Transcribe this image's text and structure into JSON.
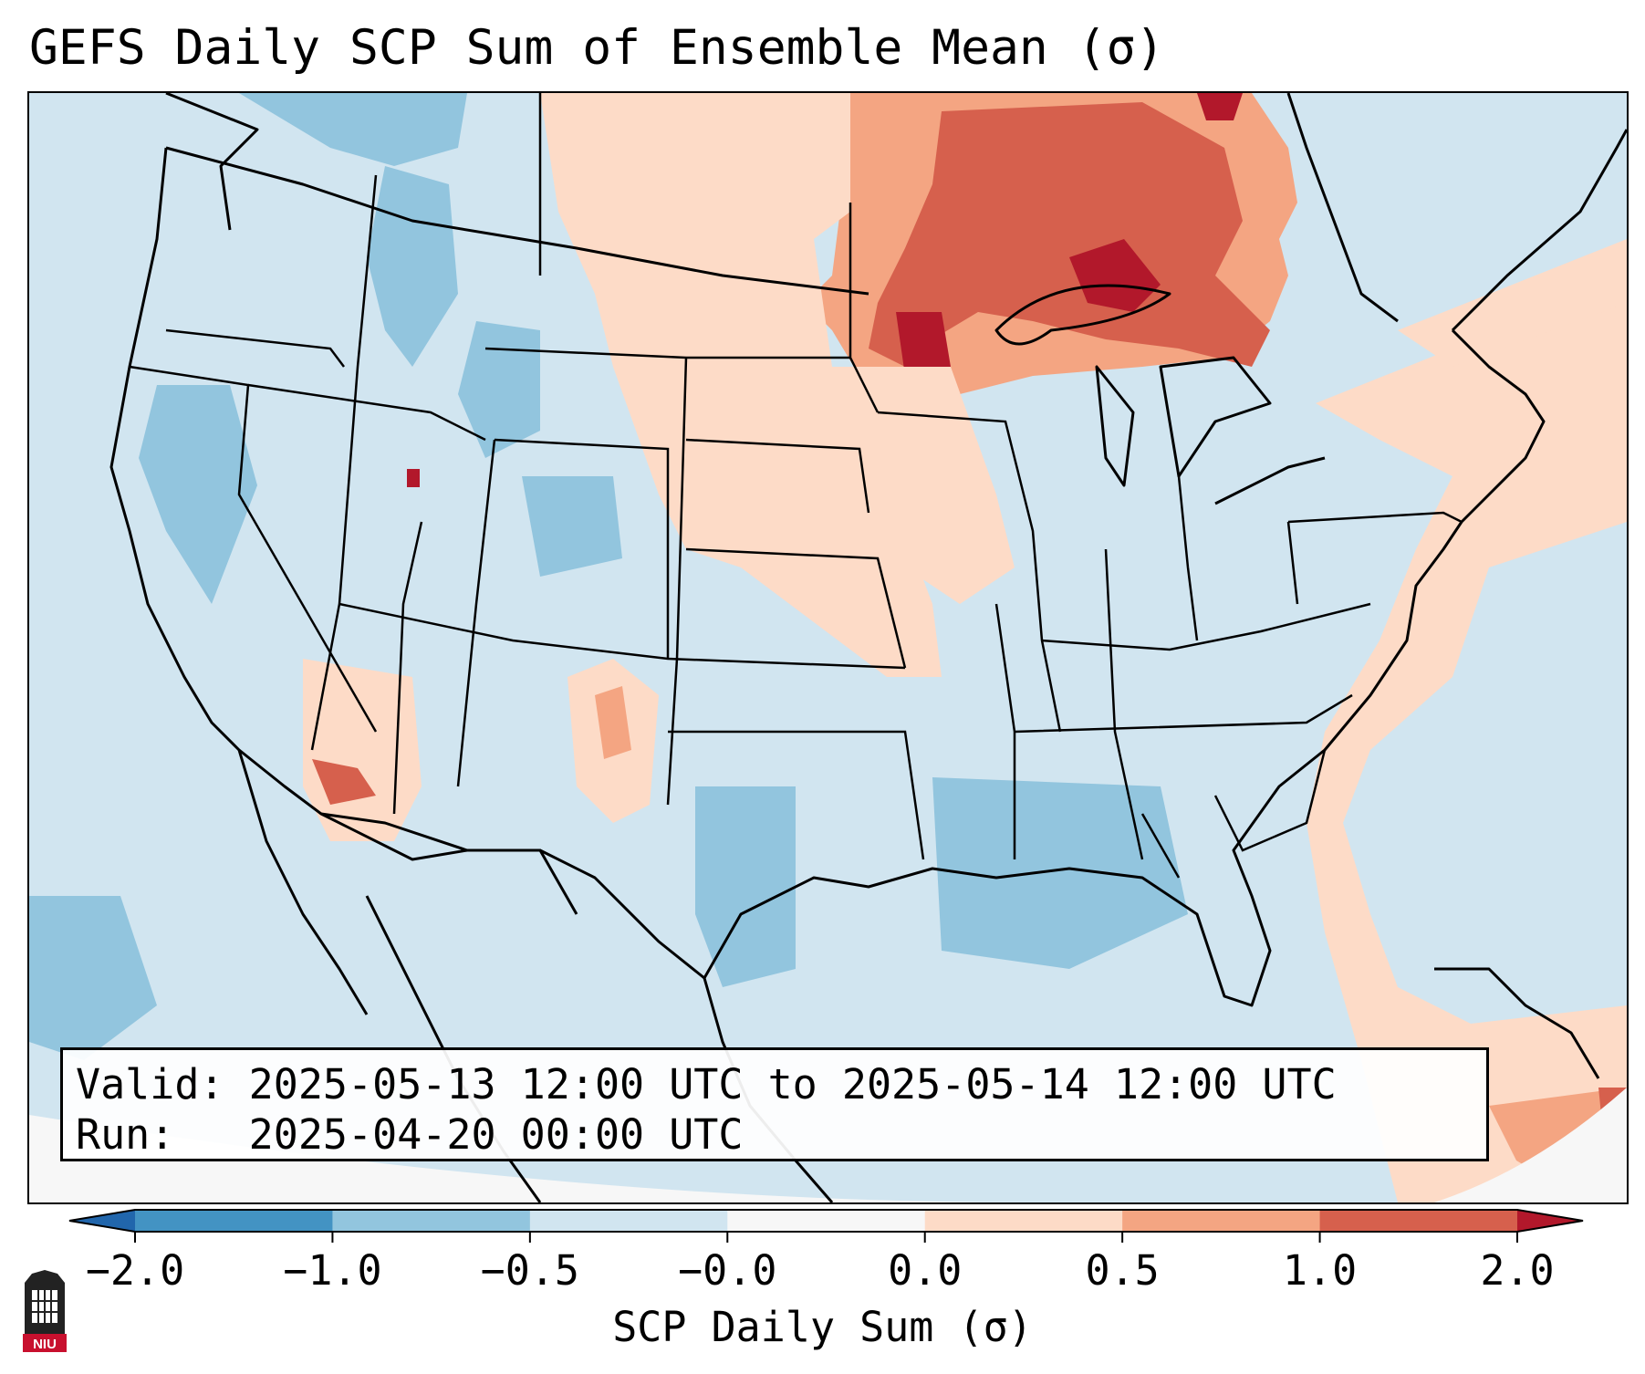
{
  "title": "GEFS Daily SCP Sum of Ensemble Mean (σ)",
  "info": {
    "valid_line": "Valid: 2025-05-13 12:00 UTC to 2025-05-14 12:00 UTC",
    "run_line": "Run:   2025-04-20 00:00 UTC"
  },
  "colorbar": {
    "label": "SCP Daily Sum (σ)",
    "ticks": [
      "−2.0",
      "−1.0",
      "−0.5",
      "−0.0",
      "0.0",
      "0.5",
      "1.0",
      "2.0"
    ],
    "bins": [
      {
        "range": "< -2.0",
        "color": "#2166ac"
      },
      {
        "range": "-2.0 to -1.0",
        "color": "#4393c3"
      },
      {
        "range": "-1.0 to -0.5",
        "color": "#92c5de"
      },
      {
        "range": "-0.5 to -0.0",
        "color": "#d1e5f0"
      },
      {
        "range": "-0.0 to 0.0",
        "color": "#f7f7f7"
      },
      {
        "range": "0.0 to 0.5",
        "color": "#fddbc7"
      },
      {
        "range": "0.5 to 1.0",
        "color": "#f4a582"
      },
      {
        "range": "1.0 to 2.0",
        "color": "#d6604d"
      },
      {
        "range": "> 2.0",
        "color": "#b2182b"
      }
    ]
  },
  "map_regions": [
    {
      "region": "upper-midwest-great-lakes",
      "level": "1.0 to 2.0"
    },
    {
      "region": "lake-superior-core",
      "level": "> 2.0"
    },
    {
      "region": "central-plains",
      "level": "0.0 to 0.5"
    },
    {
      "region": "gulf-of-mexico",
      "level": "-1.0 to -0.5"
    },
    {
      "region": "intermountain-west",
      "level": "-1.0 to -0.5"
    },
    {
      "region": "southeast-atlantic-coast",
      "level": "0.0 to 0.5"
    },
    {
      "region": "caribbean-east",
      "level": "0.5 to 1.0"
    }
  ],
  "logo_text": "NIU"
}
